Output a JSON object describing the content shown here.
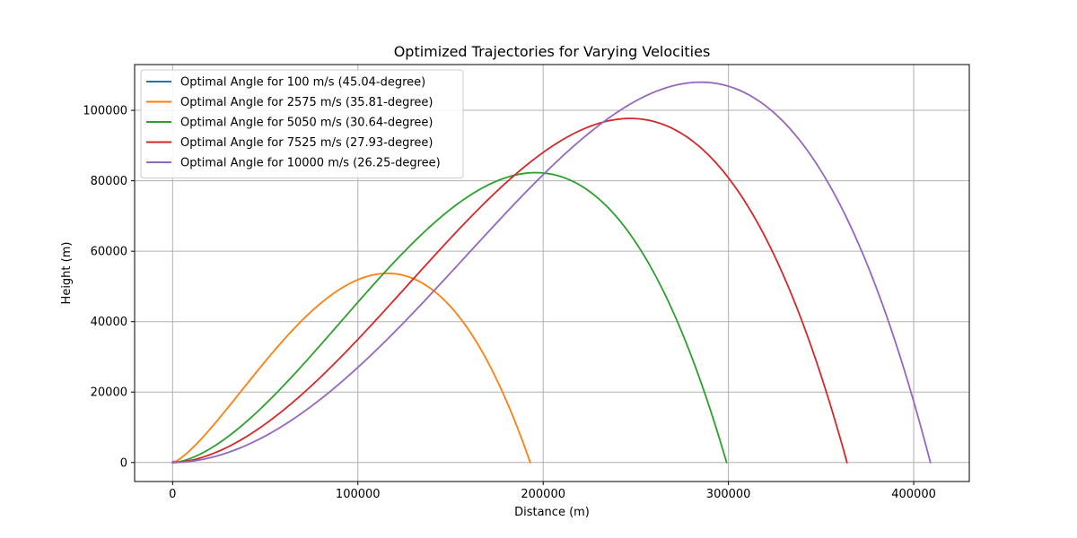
{
  "chart_data": {
    "type": "line",
    "title": "Optimized Trajectories for Varying Velocities",
    "xlabel": "Distance (m)",
    "ylabel": "Height (m)",
    "xlim": [
      -20500,
      430000
    ],
    "ylim": [
      -5400,
      113000
    ],
    "xticks": [
      0,
      100000,
      200000,
      300000,
      400000
    ],
    "yticks": [
      0,
      20000,
      40000,
      60000,
      80000,
      100000
    ],
    "grid": true,
    "legend_position": "top-left",
    "series": [
      {
        "name": "Optimal Angle for 100 m/s (45.04-degree)",
        "color": "#1f77b4",
        "range": 1020,
        "apex_x": 510,
        "apex_y": 255
      },
      {
        "name": "Optimal Angle for 2575 m/s (35.81-degree)",
        "color": "#ff7f0e",
        "range": 193000,
        "apex_x": 116000,
        "apex_y": 53700
      },
      {
        "name": "Optimal Angle for 5050 m/s (30.64-degree)",
        "color": "#2ca02c",
        "range": 299000,
        "apex_x": 196000,
        "apex_y": 82300
      },
      {
        "name": "Optimal Angle for 7525 m/s (27.93-degree)",
        "color": "#d62728",
        "range": 364000,
        "apex_x": 247000,
        "apex_y": 97700
      },
      {
        "name": "Optimal Angle for 10000 m/s (26.25-degree)",
        "color": "#9467bd",
        "range": 409000,
        "apex_x": 285000,
        "apex_y": 108000
      }
    ]
  }
}
